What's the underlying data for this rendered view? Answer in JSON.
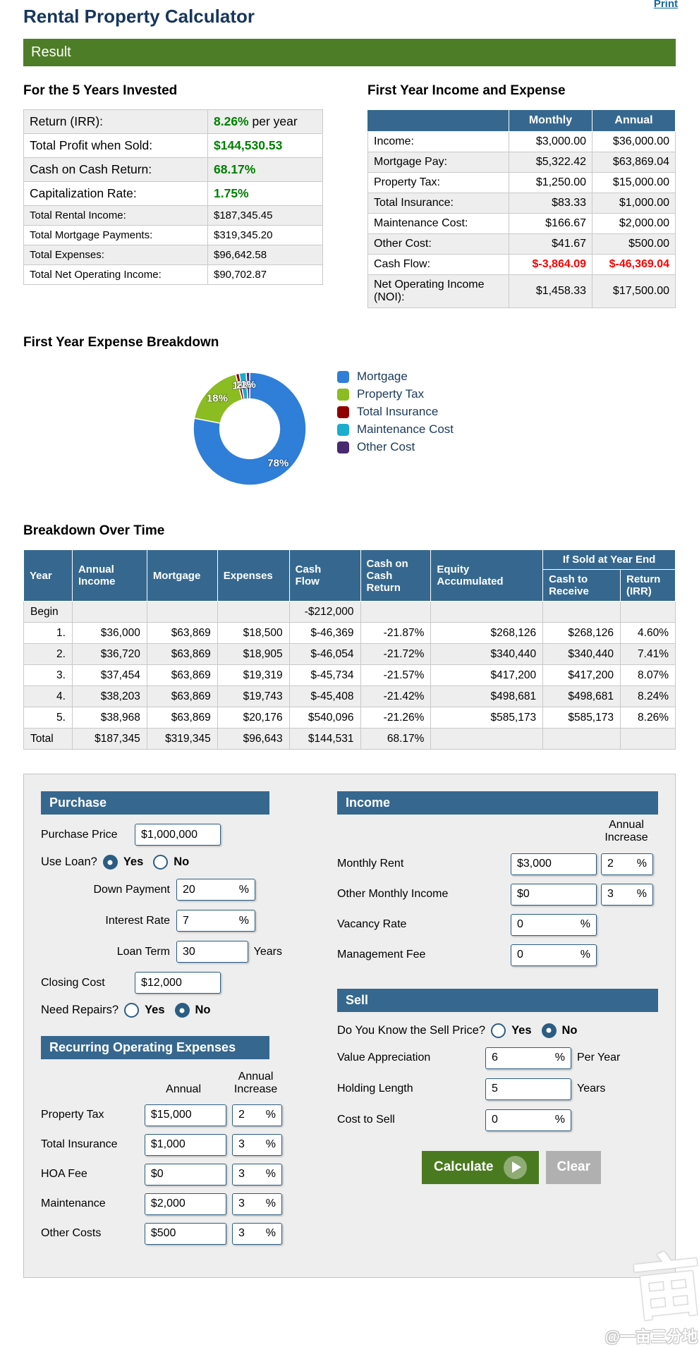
{
  "page": {
    "title": "Rental Property Calculator",
    "print_label": "Print",
    "result_label": "Result",
    "watermark_char": "亩",
    "watermark_handle": "@一亩三分地"
  },
  "summary": {
    "heading": "For the 5 Years Invested",
    "rows": [
      {
        "label": "Return (IRR):",
        "value": "8.26%",
        "suffix": " per year"
      },
      {
        "label": "Total Profit when Sold:",
        "value": "$144,530.53",
        "suffix": ""
      },
      {
        "label": "Cash on Cash Return:",
        "value": "68.17%",
        "suffix": ""
      },
      {
        "label": "Capitalization Rate:",
        "value": "1.75%",
        "suffix": ""
      },
      {
        "label": "Total Rental Income:",
        "value": "$187,345.45"
      },
      {
        "label": "Total Mortgage Payments:",
        "value": "$319,345.20"
      },
      {
        "label": "Total Expenses:",
        "value": "$96,642.58"
      },
      {
        "label": "Total Net Operating Income:",
        "value": "$90,702.87"
      }
    ]
  },
  "first_year": {
    "heading": "First Year Income and Expense",
    "col_monthly": "Monthly",
    "col_annual": "Annual",
    "rows": [
      {
        "label": "Income:",
        "monthly": "$3,000.00",
        "annual": "$36,000.00"
      },
      {
        "label": "Mortgage Pay:",
        "monthly": "$5,322.42",
        "annual": "$63,869.04"
      },
      {
        "label": "Property Tax:",
        "monthly": "$1,250.00",
        "annual": "$15,000.00"
      },
      {
        "label": "Total Insurance:",
        "monthly": "$83.33",
        "annual": "$1,000.00"
      },
      {
        "label": "Maintenance Cost:",
        "monthly": "$166.67",
        "annual": "$2,000.00"
      },
      {
        "label": "Other Cost:",
        "monthly": "$41.67",
        "annual": "$500.00"
      },
      {
        "label": "Cash Flow:",
        "monthly": "$-3,864.09",
        "annual": "$-46,369.04"
      },
      {
        "label": "Net Operating Income (NOI):",
        "monthly": "$1,458.33",
        "annual": "$17,500.00"
      }
    ]
  },
  "chart_data": {
    "type": "pie",
    "title": "First Year Expense Breakdown",
    "labels": [
      "Mortgage",
      "Property Tax",
      "Total Insurance",
      "Maintenance Cost",
      "Other Cost"
    ],
    "values": [
      78,
      18,
      1,
      2,
      1
    ],
    "unit": "%",
    "labels_display": [
      "78%",
      "18%",
      "1%",
      "2%",
      "1%"
    ],
    "colors": [
      "#2f7ed8",
      "#8bbc21",
      "#910000",
      "#1aadce",
      "#492970"
    ],
    "donut": true,
    "inner_radius_ratio": 0.53,
    "start_angle_deg": 0,
    "legend_position": "right"
  },
  "breakdown": {
    "heading": "Breakdown Over Time",
    "headers": {
      "year": "Year",
      "annual_income": "Annual\nIncome",
      "mortgage": "Mortgage",
      "expenses": "Expenses",
      "cash_flow": "Cash\nFlow",
      "coc": "Cash on\nCash\nReturn",
      "equity": "Equity\nAccumulated",
      "if_sold": "If Sold at Year End",
      "cash_to_receive": "Cash to\nReceive",
      "return_irr": "Return\n(IRR)"
    },
    "rows": [
      {
        "cells": [
          "Begin",
          "",
          "",
          "",
          "-$212,000",
          "",
          "",
          "",
          ""
        ]
      },
      {
        "cells": [
          "1.",
          "$36,000",
          "$63,869",
          "$18,500",
          "$-46,369",
          "-21.87%",
          "$268,126",
          "$268,126",
          "4.60%"
        ]
      },
      {
        "cells": [
          "2.",
          "$36,720",
          "$63,869",
          "$18,905",
          "$-46,054",
          "-21.72%",
          "$340,440",
          "$340,440",
          "7.41%"
        ]
      },
      {
        "cells": [
          "3.",
          "$37,454",
          "$63,869",
          "$19,319",
          "$-45,734",
          "-21.57%",
          "$417,200",
          "$417,200",
          "8.07%"
        ]
      },
      {
        "cells": [
          "4.",
          "$38,203",
          "$63,869",
          "$19,743",
          "$-45,408",
          "-21.42%",
          "$498,681",
          "$498,681",
          "8.24%"
        ]
      },
      {
        "cells": [
          "5.",
          "$38,968",
          "$63,869",
          "$20,176",
          "$540,096",
          "-21.26%",
          "$585,173",
          "$585,173",
          "8.26%"
        ]
      },
      {
        "cells": [
          "Total",
          "$187,345",
          "$319,345",
          "$96,643",
          "$144,531",
          "68.17%",
          "",
          "",
          ""
        ]
      }
    ]
  },
  "form": {
    "pct": "%",
    "radio_yes": "Yes",
    "radio_no": "No",
    "purchase": {
      "heading": "Purchase",
      "purchase_price_label": "Purchase Price",
      "purchase_price": "$1,000,000",
      "use_loan_label": "Use Loan?",
      "down_payment_label": "Down Payment",
      "down_payment": "20",
      "interest_rate_label": "Interest Rate",
      "interest_rate": "7",
      "loan_term_label": "Loan Term",
      "loan_term": "30",
      "loan_term_suffix": "Years",
      "closing_cost_label": "Closing Cost",
      "closing_cost": "$12,000",
      "need_repairs_label": "Need Repairs?"
    },
    "recurring": {
      "heading": "Recurring Operating Expenses",
      "col_annual": "Annual",
      "col_increase": "Annual Increase",
      "rows": [
        {
          "label": "Property Tax",
          "annual": "$15,000",
          "increase": "2"
        },
        {
          "label": "Total Insurance",
          "annual": "$1,000",
          "increase": "3"
        },
        {
          "label": "HOA Fee",
          "annual": "$0",
          "increase": "3"
        },
        {
          "label": "Maintenance",
          "annual": "$2,000",
          "increase": "3"
        },
        {
          "label": "Other Costs",
          "annual": "$500",
          "increase": "3"
        }
      ]
    },
    "income": {
      "heading": "Income",
      "col_increase": "Annual Increase",
      "monthly_rent_label": "Monthly Rent",
      "monthly_rent": "$3,000",
      "monthly_rent_increase": "2",
      "other_income_label": "Other Monthly Income",
      "other_income": "$0",
      "other_income_increase": "3",
      "vacancy_label": "Vacancy Rate",
      "vacancy": "0",
      "mgmt_label": "Management Fee",
      "mgmt": "0"
    },
    "sell": {
      "heading": "Sell",
      "know_price_label": "Do You Know the Sell Price?",
      "appreciation_label": "Value Appreciation",
      "appreciation": "6",
      "appreciation_suffix": "Per Year",
      "holding_label": "Holding Length",
      "holding": "5",
      "holding_suffix": "Years",
      "cost_to_sell_label": "Cost to Sell",
      "cost_to_sell": "0"
    },
    "buttons": {
      "calculate": "Calculate",
      "clear": "Clear"
    }
  }
}
